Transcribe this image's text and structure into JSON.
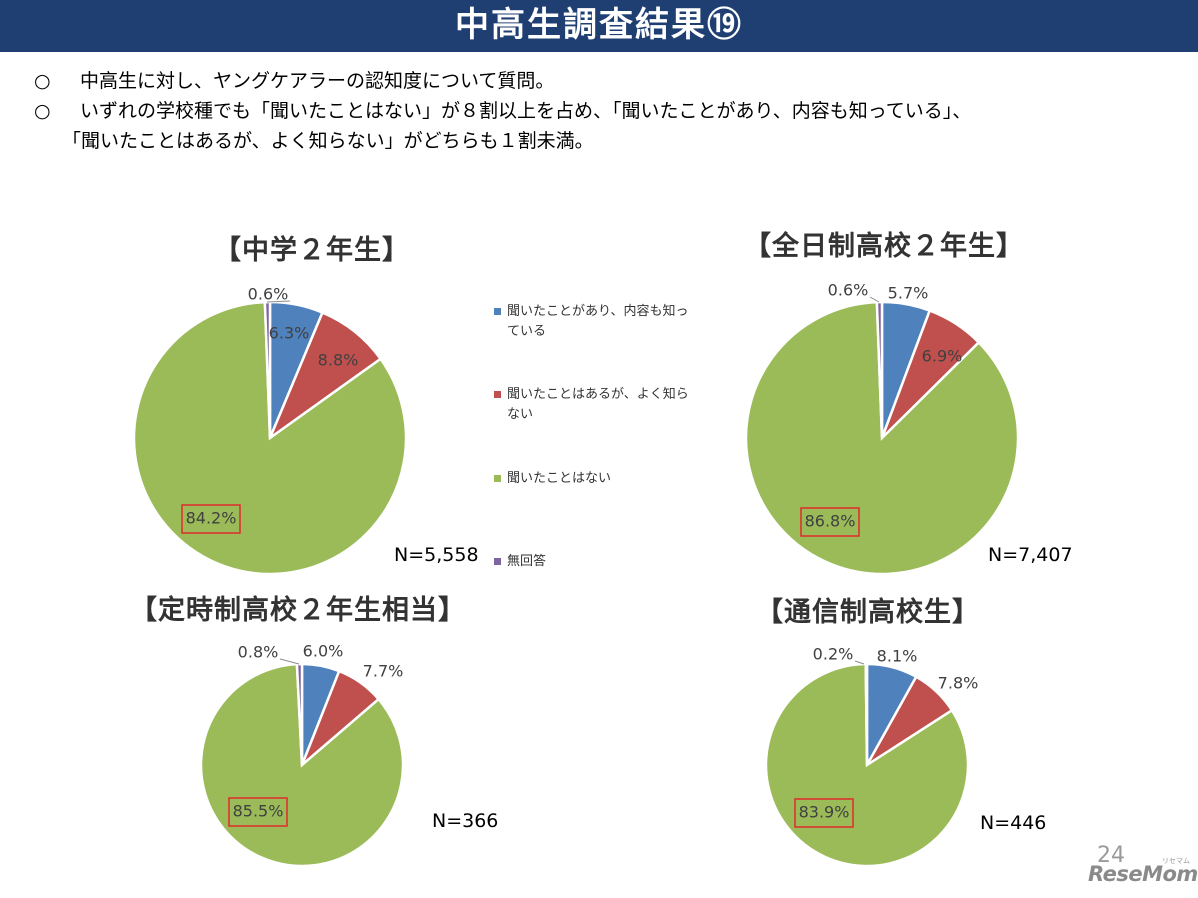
{
  "header": {
    "title": "中高生調査結果⑲"
  },
  "bullets": {
    "mark": "○",
    "line1": "中高生に対し、ヤングケアラーの認知度について質問。",
    "line2": "いずれの学校種でも「聞いたことはない」が８割以上を占め、「聞いたことがあり、内容も知っている」、",
    "line3": "「聞いたことはあるが、よく知らない」がどちらも１割未満。"
  },
  "legend": {
    "items": [
      {
        "label": "聞いたことがあり、内容も知っている",
        "line1": "聞いたことがあり、内容も知っ",
        "line2": "ている",
        "color": "#4f81bd"
      },
      {
        "label": "聞いたことはあるが、よく知らない",
        "line1": "聞いたことはあるが、よく知ら",
        "line2": "ない",
        "color": "#c0504d"
      },
      {
        "label": "聞いたことはない",
        "line1": "聞いたことはない",
        "line2": "",
        "color": "#9bbb59"
      },
      {
        "label": "無回答",
        "line1": "無回答",
        "line2": "",
        "color": "#8064a2"
      }
    ]
  },
  "chart_data": [
    {
      "type": "pie",
      "title": "【中学２年生】",
      "n_label": "N=5,558",
      "categories": [
        "聞いたことがあり、内容も知っている",
        "聞いたことはあるが、よく知らない",
        "聞いたことはない",
        "無回答"
      ],
      "values": [
        6.3,
        8.8,
        84.2,
        0.6
      ],
      "labels": [
        "6.3%",
        "8.8%",
        "84.2%",
        "0.6%"
      ],
      "highlighted": "84.2%"
    },
    {
      "type": "pie",
      "title": "【全日制高校２年生】",
      "n_label": "N=7,407",
      "categories": [
        "聞いたことがあり、内容も知っている",
        "聞いたことはあるが、よく知らない",
        "聞いたことはない",
        "無回答"
      ],
      "values": [
        5.7,
        6.9,
        86.8,
        0.6
      ],
      "labels": [
        "5.7%",
        "6.9%",
        "86.8%",
        "0.6%"
      ],
      "highlighted": "86.8%"
    },
    {
      "type": "pie",
      "title": "【定時制高校２年生相当】",
      "n_label": "N=366",
      "categories": [
        "聞いたことがあり、内容も知っている",
        "聞いたことはあるが、よく知らない",
        "聞いたことはない",
        "無回答"
      ],
      "values": [
        6.0,
        7.7,
        85.5,
        0.8
      ],
      "labels": [
        "6.0%",
        "7.7%",
        "85.5%",
        "0.8%"
      ],
      "highlighted": "85.5%"
    },
    {
      "type": "pie",
      "title": "【通信制高校生】",
      "n_label": "N=446",
      "categories": [
        "聞いたことがあり、内容も知っている",
        "聞いたことはあるが、よく知らない",
        "聞いたことはない",
        "無回答"
      ],
      "values": [
        8.1,
        7.8,
        83.9,
        0.2
      ],
      "labels": [
        "8.1%",
        "7.8%",
        "83.9%",
        "0.2%"
      ],
      "highlighted": "83.9%"
    }
  ],
  "footer": {
    "page_number": "24",
    "logo": "ReseMom",
    "logo_sub": "リセマム"
  }
}
